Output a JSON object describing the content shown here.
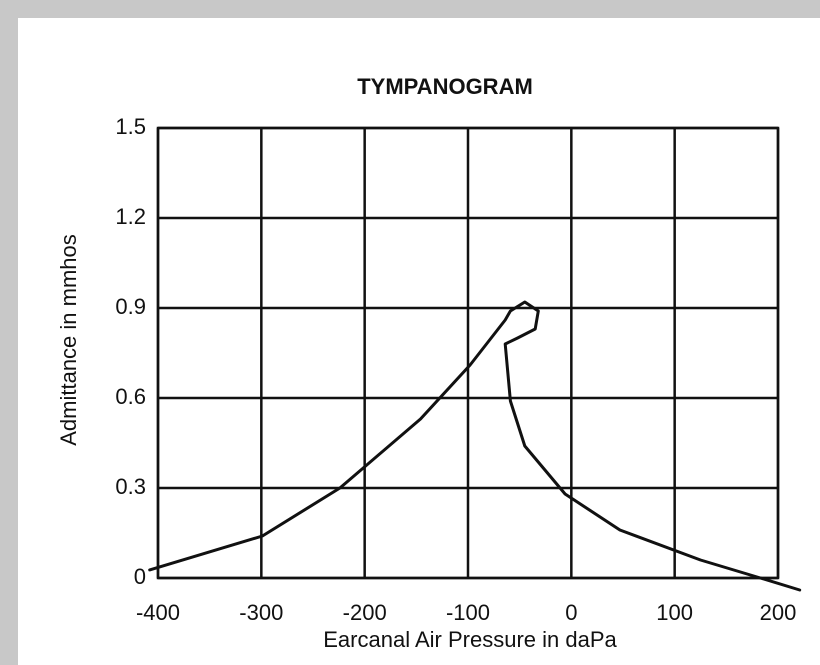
{
  "chart_data": {
    "type": "line",
    "title": "TYMPANOGRAM",
    "xlabel": "Earcanal Air Pressure in daPa",
    "ylabel": "Admittance in mmhos",
    "x": [
      -408,
      -299,
      -224,
      -146,
      -98,
      -64,
      -59,
      -45,
      -32,
      -35,
      -52,
      -64,
      -59,
      -45,
      -6,
      47,
      125,
      183,
      221
    ],
    "values": [
      0.027,
      0.14,
      0.3,
      0.53,
      0.71,
      0.86,
      0.89,
      0.92,
      0.89,
      0.83,
      0.8,
      0.78,
      0.59,
      0.44,
      0.28,
      0.16,
      0.06,
      0,
      -0.04
    ],
    "color": "#111111",
    "xlim": [
      -400,
      200
    ],
    "xticks": [
      -400,
      -300,
      -200,
      -100,
      0,
      100,
      200
    ],
    "ylim": [
      0,
      1.5
    ],
    "yticks": [
      0,
      0.3,
      0.6,
      0.9,
      1.2,
      1.5
    ],
    "grid": true
  }
}
